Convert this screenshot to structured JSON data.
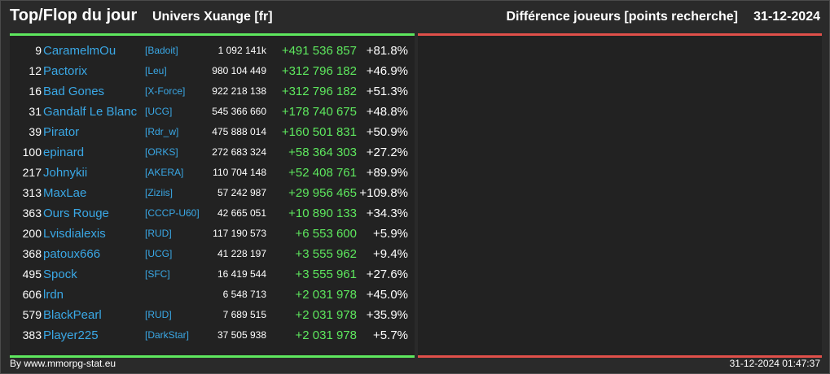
{
  "header": {
    "title": "Top/Flop du jour",
    "universe": "Univers Xuange [fr]",
    "metric": "Différence joueurs [points recherche]",
    "date": "31-12-2024"
  },
  "colors": {
    "top_accent": "#5ee85e",
    "flop_accent": "#e0504a",
    "link": "#3aa8e6",
    "background": "#2a2a2a"
  },
  "top_rows": [
    {
      "rank": "9",
      "name": "CaramelmOu",
      "alliance": "[Badoit]",
      "points": "1 092 141k",
      "diff": "+491 536 857",
      "pct": "+81.8%"
    },
    {
      "rank": "12",
      "name": "Pactorix",
      "alliance": "[Leu]",
      "points": "980 104 449",
      "diff": "+312 796 182",
      "pct": "+46.9%"
    },
    {
      "rank": "16",
      "name": "Bad Gones",
      "alliance": "[X-Force]",
      "points": "922 218 138",
      "diff": "+312 796 182",
      "pct": "+51.3%"
    },
    {
      "rank": "31",
      "name": "Gandalf Le Blanc",
      "alliance": "[UCG]",
      "points": "545 366 660",
      "diff": "+178 740 675",
      "pct": "+48.8%"
    },
    {
      "rank": "39",
      "name": "Pirator",
      "alliance": "[Rdr_w]",
      "points": "475 888 014",
      "diff": "+160 501 831",
      "pct": "+50.9%"
    },
    {
      "rank": "100",
      "name": "epinard",
      "alliance": "[ORKS]",
      "points": "272 683 324",
      "diff": "+58 364 303",
      "pct": "+27.2%"
    },
    {
      "rank": "217",
      "name": "Johnykii",
      "alliance": "[AKERA]",
      "points": "110 704 148",
      "diff": "+52 408 761",
      "pct": "+89.9%"
    },
    {
      "rank": "313",
      "name": "MaxLae",
      "alliance": "[Ziziis]",
      "points": "57 242 987",
      "diff": "+29 956 465",
      "pct": "+109.8%"
    },
    {
      "rank": "363",
      "name": "Ours Rouge",
      "alliance": "[CCCP-U60]",
      "points": "42 665 051",
      "diff": "+10 890 133",
      "pct": "+34.3%"
    },
    {
      "rank": "200",
      "name": "Lvisdialexis",
      "alliance": "[RUD]",
      "points": "117 190 573",
      "diff": "+6 553 600",
      "pct": "+5.9%"
    },
    {
      "rank": "368",
      "name": "patoux666",
      "alliance": "[UCG]",
      "points": "41 228 197",
      "diff": "+3 555 962",
      "pct": "+9.4%"
    },
    {
      "rank": "495",
      "name": "Spock",
      "alliance": "[SFC]",
      "points": "16 419 544",
      "diff": "+3 555 961",
      "pct": "+27.6%"
    },
    {
      "rank": "606",
      "name": "lrdn",
      "alliance": "",
      "points": "6 548 713",
      "diff": "+2 031 978",
      "pct": "+45.0%"
    },
    {
      "rank": "579",
      "name": "BlackPearl",
      "alliance": "[RUD]",
      "points": "7 689 515",
      "diff": "+2 031 978",
      "pct": "+35.9%"
    },
    {
      "rank": "383",
      "name": "Player225",
      "alliance": "[DarkStar]",
      "points": "37 505 938",
      "diff": "+2 031 978",
      "pct": "+5.7%"
    }
  ],
  "footer": {
    "credit": "By www.mmorpg-stat.eu",
    "timestamp": "31-12-2024 01:47:37"
  }
}
